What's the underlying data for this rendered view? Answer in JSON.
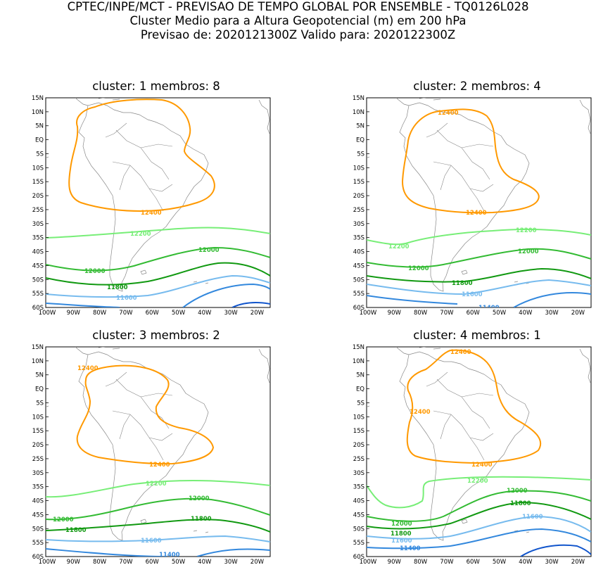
{
  "header": {
    "line1": "CPTEC/INPE/MCT - PREVISAO DE TEMPO GLOBAL POR ENSEMBLE - TQ0126L028",
    "line2": "Cluster Medio para a Altura Geopotencial (m) em 200 hPa",
    "line3": "Previsao de: 2020121300Z   Valido para: 2020122300Z"
  },
  "axes": {
    "lat_labels": [
      "15N",
      "10N",
      "5N",
      "EQ",
      "5S",
      "10S",
      "15S",
      "20S",
      "25S",
      "30S",
      "35S",
      "40S",
      "45S",
      "50S",
      "55S",
      "60S"
    ],
    "lon_labels": [
      "100W",
      "90W",
      "80W",
      "70W",
      "60W",
      "50W",
      "40W",
      "30W",
      "20W"
    ]
  },
  "colors": {
    "c12400": "#ff9900",
    "c12200": "#77ee77",
    "c12000": "#33bb33",
    "c11800": "#119911",
    "c11600": "#77bbee",
    "c11400": "#3388dd",
    "c11200": "#1155cc",
    "land": "#888888"
  },
  "panels": [
    {
      "title": "cluster: 1   membros: 8",
      "labels": {
        "l12400": "12400",
        "l12200": "12200",
        "l12000a": "12000",
        "l12000b": "12000",
        "l11800": "11800",
        "l11600": "11600"
      }
    },
    {
      "title": "cluster: 2   membros: 4",
      "labels": {
        "l12400a": "12400",
        "l12400b": "12400",
        "l12200a": "12200",
        "l12200b": "12200",
        "l12000a": "12000",
        "l12000b": "12000",
        "l11800": "11800",
        "l11600": "11600",
        "l11400": "11400"
      }
    },
    {
      "title": "cluster: 3   membros: 2",
      "labels": {
        "l12400a": "12400",
        "l12400b": "12400",
        "l12200": "12200",
        "l12000a": "12000",
        "l12000b": "12000",
        "l11800a": "11800",
        "l11800b": "11800",
        "l11600": "11600",
        "l11400": "11400"
      }
    },
    {
      "title": "cluster: 4   membros: 1",
      "labels": {
        "l12400a": "12400",
        "l12400b": "12400",
        "l12400c": "12400",
        "l12200": "12200",
        "l12000a": "12000",
        "l12000b": "12000",
        "l11800a": "11800",
        "l11800b": "11800",
        "l11600a": "11600",
        "l11600b": "11600",
        "l11400": "11400"
      }
    }
  ]
}
